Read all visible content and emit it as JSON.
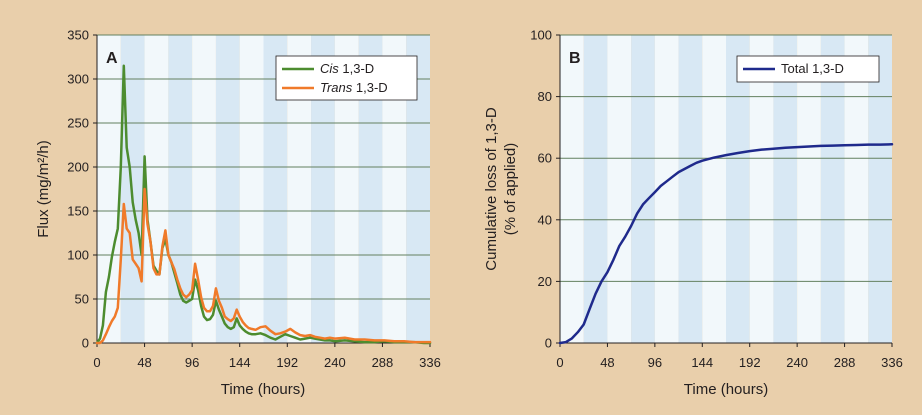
{
  "colors": {
    "background": "#e9cfab",
    "band_light": "#f2f8fb",
    "band_dark": "#d8e8f4",
    "gridline": "#63805f",
    "cis": "#4d8c2f",
    "trans": "#f07a2a",
    "total": "#1f2a8c"
  },
  "chart_data": [
    {
      "type": "line",
      "panel_label": "A",
      "xlabel": "Time (hours)",
      "ylabel": "Flux (mg/m²/h)",
      "xlim": [
        0,
        336
      ],
      "ylim": [
        0,
        350
      ],
      "xticks": [
        0,
        48,
        96,
        144,
        192,
        240,
        288,
        336
      ],
      "yticks": [
        0,
        50,
        100,
        150,
        200,
        250,
        300,
        350
      ],
      "grid": "horizontal",
      "background": "alternating 24-hour day/night bands",
      "legend_position": "top-right",
      "series": [
        {
          "name_italic": "Cis",
          "name_rest": " 1,3-D",
          "color": "#4d8c2f",
          "x": [
            0,
            3,
            6,
            9,
            12,
            15,
            18,
            21,
            24,
            27,
            30,
            33,
            36,
            39,
            42,
            45,
            48,
            51,
            54,
            57,
            60,
            63,
            66,
            69,
            72,
            75,
            78,
            81,
            84,
            87,
            90,
            93,
            96,
            99,
            102,
            105,
            108,
            111,
            114,
            117,
            120,
            123,
            126,
            129,
            132,
            135,
            138,
            141,
            144,
            147,
            150,
            153,
            156,
            160,
            165,
            170,
            175,
            180,
            185,
            190,
            195,
            200,
            205,
            210,
            215,
            220,
            225,
            230,
            235,
            240,
            250,
            260,
            270,
            280,
            290,
            300,
            310,
            320,
            330,
            336
          ],
          "y": [
            0,
            5,
            20,
            58,
            75,
            98,
            115,
            130,
            200,
            315,
            222,
            200,
            160,
            140,
            125,
            100,
            212,
            140,
            115,
            88,
            82,
            78,
            108,
            118,
            100,
            92,
            80,
            68,
            55,
            48,
            46,
            48,
            50,
            72,
            60,
            42,
            30,
            26,
            27,
            32,
            48,
            38,
            30,
            22,
            18,
            16,
            18,
            28,
            20,
            16,
            13,
            11,
            10,
            10,
            11,
            9,
            6,
            4,
            7,
            10,
            8,
            6,
            4,
            5,
            6,
            5,
            4,
            3,
            3,
            2,
            3,
            2,
            1,
            1,
            2,
            1,
            1,
            1,
            0,
            0
          ]
        },
        {
          "name_italic": "Trans",
          "name_rest": " 1,3-D",
          "color": "#f07a2a",
          "x": [
            0,
            3,
            6,
            9,
            12,
            15,
            18,
            21,
            24,
            27,
            30,
            33,
            36,
            39,
            42,
            45,
            48,
            51,
            54,
            57,
            60,
            63,
            66,
            69,
            72,
            75,
            78,
            81,
            84,
            87,
            90,
            93,
            96,
            99,
            102,
            105,
            108,
            111,
            114,
            117,
            120,
            123,
            126,
            129,
            132,
            135,
            138,
            141,
            144,
            147,
            150,
            153,
            156,
            160,
            165,
            170,
            175,
            180,
            185,
            190,
            195,
            200,
            205,
            210,
            215,
            220,
            225,
            230,
            235,
            240,
            250,
            260,
            270,
            280,
            290,
            300,
            310,
            320,
            330,
            336
          ],
          "y": [
            0,
            0,
            3,
            10,
            18,
            25,
            30,
            40,
            95,
            158,
            130,
            125,
            95,
            90,
            85,
            70,
            175,
            135,
            115,
            85,
            78,
            78,
            110,
            128,
            100,
            92,
            84,
            72,
            62,
            55,
            52,
            55,
            60,
            90,
            72,
            52,
            40,
            36,
            36,
            42,
            62,
            48,
            40,
            30,
            27,
            25,
            28,
            38,
            30,
            24,
            20,
            17,
            16,
            15,
            18,
            19,
            14,
            10,
            11,
            13,
            16,
            12,
            9,
            8,
            9,
            7,
            6,
            5,
            6,
            5,
            6,
            4,
            4,
            3,
            3,
            2,
            2,
            1,
            1,
            1
          ]
        }
      ]
    },
    {
      "type": "line",
      "panel_label": "B",
      "xlabel": "Time (hours)",
      "ylabel_lines": [
        "Cumulative loss of 1,3-D",
        "(% of applied)"
      ],
      "xlim": [
        0,
        336
      ],
      "ylim": [
        0,
        100
      ],
      "xticks": [
        0,
        48,
        96,
        144,
        192,
        240,
        288,
        336
      ],
      "yticks": [
        0,
        20,
        40,
        60,
        80,
        100
      ],
      "grid": "horizontal",
      "background": "alternating 24-hour day/night bands",
      "legend_position": "top-right",
      "series": [
        {
          "name": "Total 1,3-D",
          "color": "#1f2a8c",
          "x": [
            0,
            6,
            12,
            18,
            24,
            30,
            36,
            42,
            48,
            54,
            60,
            66,
            72,
            78,
            84,
            90,
            96,
            102,
            108,
            114,
            120,
            126,
            132,
            138,
            144,
            156,
            168,
            180,
            192,
            204,
            216,
            228,
            240,
            252,
            264,
            276,
            288,
            300,
            312,
            324,
            336
          ],
          "y": [
            0,
            0.3,
            1.5,
            3.5,
            6,
            11,
            16,
            20,
            23,
            27,
            31.5,
            34.5,
            38,
            42,
            45,
            47,
            49,
            51,
            52.5,
            54,
            55.5,
            56.5,
            57.5,
            58.5,
            59.2,
            60.2,
            61,
            61.7,
            62.3,
            62.8,
            63.1,
            63.4,
            63.6,
            63.8,
            64,
            64.1,
            64.2,
            64.3,
            64.4,
            64.4,
            64.5
          ]
        }
      ]
    }
  ]
}
